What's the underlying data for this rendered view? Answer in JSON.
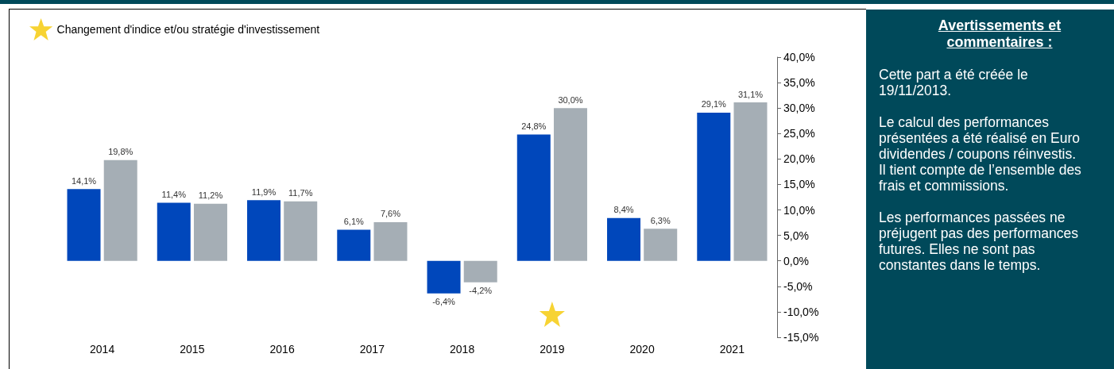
{
  "chart_data": [
    {
      "type": "bar",
      "categories": [
        "2014",
        "2015",
        "2016",
        "2017",
        "2018",
        "2019",
        "2020",
        "2021"
      ],
      "series": [
        {
          "color": "#0047bb",
          "values": [
            14.1,
            11.4,
            11.9,
            6.1,
            -6.4,
            24.8,
            8.4,
            29.1
          ],
          "value_labels": [
            "14,1%",
            "11,4%",
            "11,9%",
            "6,1%",
            "-6,4%",
            "24,8%",
            "8,4%",
            "29,1%"
          ]
        },
        {
          "color": "#a5aeb5",
          "values": [
            19.8,
            11.2,
            11.7,
            7.6,
            -4.2,
            30.0,
            6.3,
            31.1
          ],
          "value_labels": [
            "19,8%",
            "11,2%",
            "11,7%",
            "7,6%",
            "-4,2%",
            "30,0%",
            "6,3%",
            "31,1%"
          ]
        },
        {
          "type": "scatter",
          "name": "Changement d'indice et/ou stratégie d'investissement",
          "color": "#f5c800",
          "marker": "star",
          "values": [
            null,
            null,
            null,
            null,
            null,
            -10.5,
            null,
            null
          ]
        }
      ],
      "ylim": [
        -15,
        40
      ],
      "yticks": [
        {
          "value": -15,
          "label": "-15,0%"
        },
        {
          "value": -10,
          "label": "-10,0%"
        },
        {
          "value": -5,
          "label": "-5,0%"
        },
        {
          "value": 0,
          "label": "0,0%"
        },
        {
          "value": 5,
          "label": "5,0%"
        },
        {
          "value": 10,
          "label": "10,0%"
        },
        {
          "value": 15,
          "label": "15,0%"
        },
        {
          "value": 20,
          "label": "20,0%"
        },
        {
          "value": 25,
          "label": "25,0%"
        },
        {
          "value": 30,
          "label": "30,0%"
        },
        {
          "value": 35,
          "label": "35,0%"
        },
        {
          "value": 40,
          "label": "40,0%"
        }
      ],
      "legend": "top left"
    },
    {
      "type": "other",
      "title": "Avertissements et commentaires :",
      "annotations": [
        "Cette part a été créée le 19/11/2013.",
        "Le calcul des performances présentées a été réalisé en Euro dividendes / coupons réinvestis. Il tient compte de l’ensemble des frais et commissions.",
        "Les performances passées ne préjugent pas des performances futures. Elles ne sont pas constantes dans le temps."
      ]
    }
  ]
}
